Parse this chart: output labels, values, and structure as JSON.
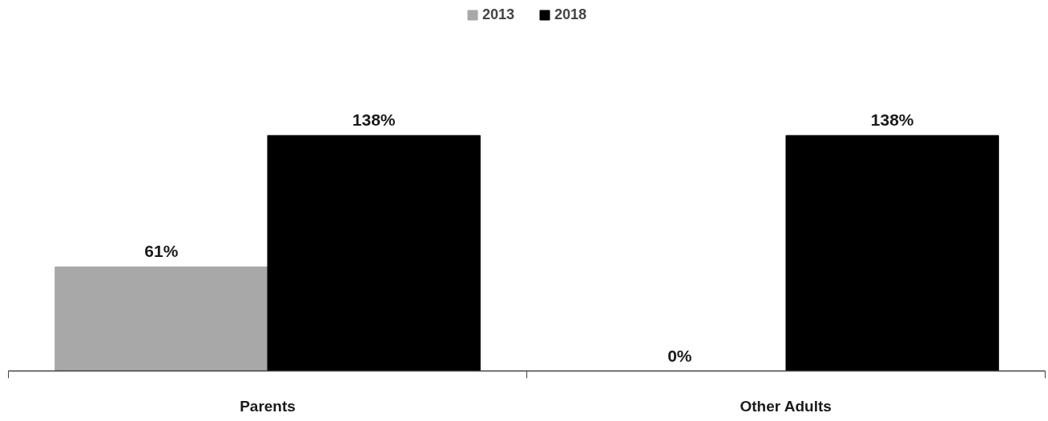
{
  "chart_data": {
    "type": "bar",
    "categories": [
      "Parents",
      "Other Adults"
    ],
    "series": [
      {
        "name": "2013",
        "color": "#a8a8a8",
        "values": [
          61,
          0
        ],
        "value_labels": [
          "61%",
          "0%"
        ]
      },
      {
        "name": "2018",
        "color": "#000000",
        "values": [
          138,
          138
        ],
        "value_labels": [
          "138%",
          "138%"
        ]
      }
    ],
    "legend": "top"
  }
}
